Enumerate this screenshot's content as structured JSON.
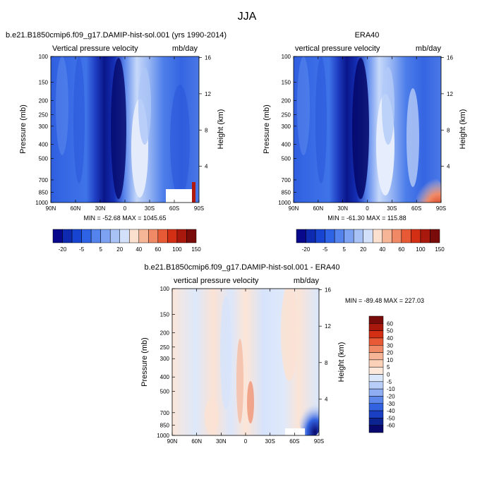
{
  "figure": {
    "season": "JJA"
  },
  "chart_data": [
    {
      "type": "heatmap",
      "id": "model",
      "title_left": "b.e21.B1850cmip6.f09_g17.DAMIP-hist-sol.001 (yrs 1990-2014)",
      "variable": "Vertical pressure velocity",
      "units": "mb/day",
      "x_ticks": [
        "90N",
        "60N",
        "30N",
        "0",
        "30S",
        "60S",
        "90S"
      ],
      "x_values": [
        90,
        60,
        30,
        0,
        -30,
        -60,
        -90
      ],
      "y_ticks": [
        "100",
        "150",
        "200",
        "250",
        "300",
        "400",
        "500",
        "700",
        "850",
        "1000"
      ],
      "y_values": [
        100,
        150,
        200,
        250,
        300,
        400,
        500,
        700,
        850,
        1000
      ],
      "y_scale": "log",
      "ylabel": "Pressure (mb)",
      "y2_ticks": [
        "16",
        "12",
        "8",
        "4"
      ],
      "y2_values": [
        16,
        12,
        8,
        4
      ],
      "y2label": "Height (km)",
      "min_max": "MIN = -52.68  MAX = 1045.65",
      "min": -52.68,
      "max": 1045.65
    },
    {
      "type": "heatmap",
      "id": "obs",
      "title_center": "ERA40",
      "variable": "vertical pressure velocity",
      "units": "mb/day",
      "x_ticks": [
        "90N",
        "60N",
        "30N",
        "0",
        "30S",
        "60S",
        "90S"
      ],
      "x_values": [
        90,
        60,
        30,
        0,
        -30,
        -60,
        -90
      ],
      "y_ticks": [
        "100",
        "150",
        "200",
        "250",
        "300",
        "400",
        "500",
        "700",
        "850",
        "1000"
      ],
      "y_values": [
        100,
        150,
        200,
        250,
        300,
        400,
        500,
        700,
        850,
        1000
      ],
      "y_scale": "log",
      "ylabel": "Pressure (mb)",
      "y2_ticks": [
        "16",
        "12",
        "8",
        "4"
      ],
      "y2_values": [
        16,
        12,
        8,
        4
      ],
      "y2label": "Height (km)",
      "min_max": "MIN = -61.30  MAX = 115.88",
      "min": -61.3,
      "max": 115.88
    },
    {
      "type": "heatmap",
      "id": "diff",
      "title_center": "b.e21.B1850cmip6.f09_g17.DAMIP-hist-sol.001 - ERA40",
      "variable": "vertical pressure velocity",
      "units": "mb/day",
      "x_ticks": [
        "90N",
        "60N",
        "30N",
        "0",
        "30S",
        "60S",
        "90S"
      ],
      "x_values": [
        90,
        60,
        30,
        0,
        -30,
        -60,
        -90
      ],
      "y_ticks": [
        "100",
        "150",
        "200",
        "250",
        "300",
        "400",
        "500",
        "700",
        "850",
        "1000"
      ],
      "y_values": [
        100,
        150,
        200,
        250,
        300,
        400,
        500,
        700,
        850,
        1000
      ],
      "y_scale": "log",
      "ylabel": "Pressure (mb)",
      "y2_ticks": [
        "16",
        "12",
        "8",
        "4"
      ],
      "y2_values": [
        16,
        12,
        8,
        4
      ],
      "y2label": "Height (km)",
      "min_max": "MIN = -89.48  MAX = 227.03",
      "min": -89.48,
      "max": 227.03
    }
  ],
  "colorbars": {
    "main": {
      "labels": [
        "-20",
        "-5",
        "5",
        "20",
        "40",
        "60",
        "100",
        "150"
      ],
      "colors": [
        "#08088c",
        "#0d2ab0",
        "#1745d1",
        "#2e63e6",
        "#5483ee",
        "#7ea2f2",
        "#a8c2f6",
        "#d2e0fa",
        "#fce0cf",
        "#f7b598",
        "#f08a66",
        "#e85a36",
        "#d22f15",
        "#a9180c",
        "#7a0b0b"
      ]
    },
    "diff": {
      "labels": [
        "60",
        "50",
        "40",
        "30",
        "20",
        "10",
        "5",
        "0",
        "-5",
        "-10",
        "-20",
        "-30",
        "-40",
        "-50",
        "-60"
      ],
      "colors": [
        "#7a0b0b",
        "#a9180c",
        "#d22f15",
        "#e85a36",
        "#f08a66",
        "#f7b598",
        "#fbd1b8",
        "#fde9dc",
        "#dbe7fb",
        "#b8cdf7",
        "#8fadf2",
        "#5d87ea",
        "#3262df",
        "#1a3fc2",
        "#0d2490",
        "#08086e"
      ]
    }
  }
}
